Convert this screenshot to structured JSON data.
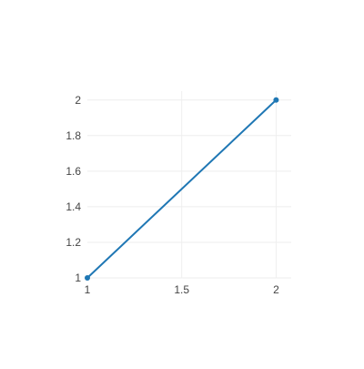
{
  "chart_data": {
    "type": "line",
    "title": "",
    "xlabel": "",
    "ylabel": "",
    "x": [
      1,
      2
    ],
    "series": [
      {
        "values": [
          1,
          2
        ],
        "color": "#1f77b4",
        "marker": "circle"
      }
    ],
    "xlim": [
      1,
      2.08
    ],
    "ylim": [
      1,
      2.05
    ],
    "x_ticks": [
      1,
      1.5,
      2
    ],
    "x_tick_labels": [
      "1",
      "1.5",
      "2"
    ],
    "y_ticks": [
      1,
      1.2,
      1.4,
      1.6,
      1.8,
      2
    ],
    "y_tick_labels": [
      "1",
      "1.2",
      "1.4",
      "1.6",
      "1.8",
      "2"
    ],
    "grid": true,
    "colors": {
      "grid": "#eeeeee",
      "tick_text": "#444444",
      "line": "#1f77b4"
    }
  }
}
